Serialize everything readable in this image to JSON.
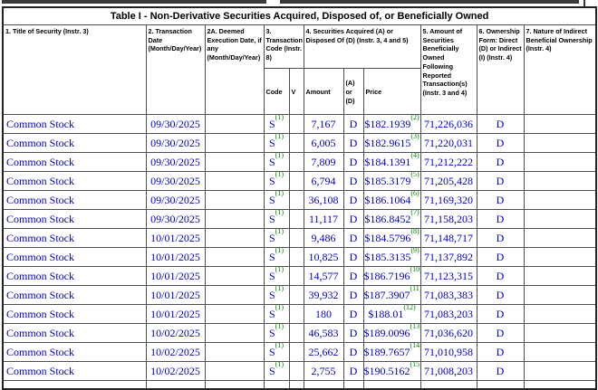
{
  "colors": {
    "data_blue": "#0000cc",
    "footnote_green": "#008000",
    "border": "#4f4f4f"
  },
  "table": {
    "title": "Table I - Non-Derivative Securities Acquired, Disposed of, or Beneficially Owned",
    "headers": {
      "col1": "1. Title of Security (Instr. 3)",
      "col2": "2. Transaction Date (Month/Day/Year)",
      "col2a": "2A. Deemed Execution Date, if any (Month/Day/Year)",
      "col3": "3. Transaction Code (Instr. 8)",
      "col4": "4. Securities Acquired (A) or Disposed Of (D) (Instr. 3, 4 and 5)",
      "col5": "5. Amount of Securities Beneficially Owned Following Reported Transaction(s) (Instr. 3 and 4)",
      "col6": "6. Ownership Form: Direct (D) or Indirect (I) (Instr. 4)",
      "col7": "7. Nature of Indirect Beneficial Ownership (Instr. 4)"
    },
    "subheaders": {
      "code": "Code",
      "v": "V",
      "amount": "Amount",
      "a_or_d": "(A) or (D)",
      "price": "Price"
    },
    "rows": [
      {
        "title": "Common Stock",
        "date": "09/30/2025",
        "deemed": "",
        "code": "S",
        "code_fn": "(1)",
        "v": "",
        "amount": "7,167",
        "acq_disp": "D",
        "price": "$182.1939",
        "price_fn": "(2)",
        "owned": "71,226,036",
        "ownership": "D",
        "nature": ""
      },
      {
        "title": "Common Stock",
        "date": "09/30/2025",
        "deemed": "",
        "code": "S",
        "code_fn": "(1)",
        "v": "",
        "amount": "6,005",
        "acq_disp": "D",
        "price": "$182.9615",
        "price_fn": "(3)",
        "owned": "71,220,031",
        "ownership": "D",
        "nature": ""
      },
      {
        "title": "Common Stock",
        "date": "09/30/2025",
        "deemed": "",
        "code": "S",
        "code_fn": "(1)",
        "v": "",
        "amount": "7,809",
        "acq_disp": "D",
        "price": "$184.1391",
        "price_fn": "(4)",
        "owned": "71,212,222",
        "ownership": "D",
        "nature": ""
      },
      {
        "title": "Common Stock",
        "date": "09/30/2025",
        "deemed": "",
        "code": "S",
        "code_fn": "(1)",
        "v": "",
        "amount": "6,794",
        "acq_disp": "D",
        "price": "$185.3179",
        "price_fn": "(5)",
        "owned": "71,205,428",
        "ownership": "D",
        "nature": ""
      },
      {
        "title": "Common Stock",
        "date": "09/30/2025",
        "deemed": "",
        "code": "S",
        "code_fn": "(1)",
        "v": "",
        "amount": "36,108",
        "acq_disp": "D",
        "price": "$186.1064",
        "price_fn": "(6)",
        "owned": "71,169,320",
        "ownership": "D",
        "nature": ""
      },
      {
        "title": "Common Stock",
        "date": "09/30/2025",
        "deemed": "",
        "code": "S",
        "code_fn": "(1)",
        "v": "",
        "amount": "11,117",
        "acq_disp": "D",
        "price": "$186.8452",
        "price_fn": "(7)",
        "owned": "71,158,203",
        "ownership": "D",
        "nature": ""
      },
      {
        "title": "Common Stock",
        "date": "10/01/2025",
        "deemed": "",
        "code": "S",
        "code_fn": "(1)",
        "v": "",
        "amount": "9,486",
        "acq_disp": "D",
        "price": "$184.5796",
        "price_fn": "(8)",
        "owned": "71,148,717",
        "ownership": "D",
        "nature": ""
      },
      {
        "title": "Common Stock",
        "date": "10/01/2025",
        "deemed": "",
        "code": "S",
        "code_fn": "(1)",
        "v": "",
        "amount": "10,825",
        "acq_disp": "D",
        "price": "$185.3135",
        "price_fn": "(9)",
        "owned": "71,137,892",
        "ownership": "D",
        "nature": ""
      },
      {
        "title": "Common Stock",
        "date": "10/01/2025",
        "deemed": "",
        "code": "S",
        "code_fn": "(1)",
        "v": "",
        "amount": "14,577",
        "acq_disp": "D",
        "price": "$186.7196",
        "price_fn": "(10)",
        "owned": "71,123,315",
        "ownership": "D",
        "nature": ""
      },
      {
        "title": "Common Stock",
        "date": "10/01/2025",
        "deemed": "",
        "code": "S",
        "code_fn": "(1)",
        "v": "",
        "amount": "39,932",
        "acq_disp": "D",
        "price": "$187.3907",
        "price_fn": "(11)",
        "owned": "71,083,383",
        "ownership": "D",
        "nature": ""
      },
      {
        "title": "Common Stock",
        "date": "10/01/2025",
        "deemed": "",
        "code": "S",
        "code_fn": "(1)",
        "v": "",
        "amount": "180",
        "acq_disp": "D",
        "price": "$188.01",
        "price_fn": "(12)",
        "owned": "71,083,203",
        "ownership": "D",
        "nature": ""
      },
      {
        "title": "Common Stock",
        "date": "10/02/2025",
        "deemed": "",
        "code": "S",
        "code_fn": "(1)",
        "v": "",
        "amount": "46,583",
        "acq_disp": "D",
        "price": "$189.0096",
        "price_fn": "(13)",
        "owned": "71,036,620",
        "ownership": "D",
        "nature": ""
      },
      {
        "title": "Common Stock",
        "date": "10/02/2025",
        "deemed": "",
        "code": "S",
        "code_fn": "(1)",
        "v": "",
        "amount": "25,662",
        "acq_disp": "D",
        "price": "$189.7657",
        "price_fn": "(14)",
        "owned": "71,010,958",
        "ownership": "D",
        "nature": ""
      },
      {
        "title": "Common Stock",
        "date": "10/02/2025",
        "deemed": "",
        "code": "S",
        "code_fn": "(1)",
        "v": "",
        "amount": "2,755",
        "acq_disp": "D",
        "price": "$190.5162",
        "price_fn": "(15)",
        "owned": "71,008,203",
        "ownership": "D",
        "nature": ""
      }
    ]
  }
}
